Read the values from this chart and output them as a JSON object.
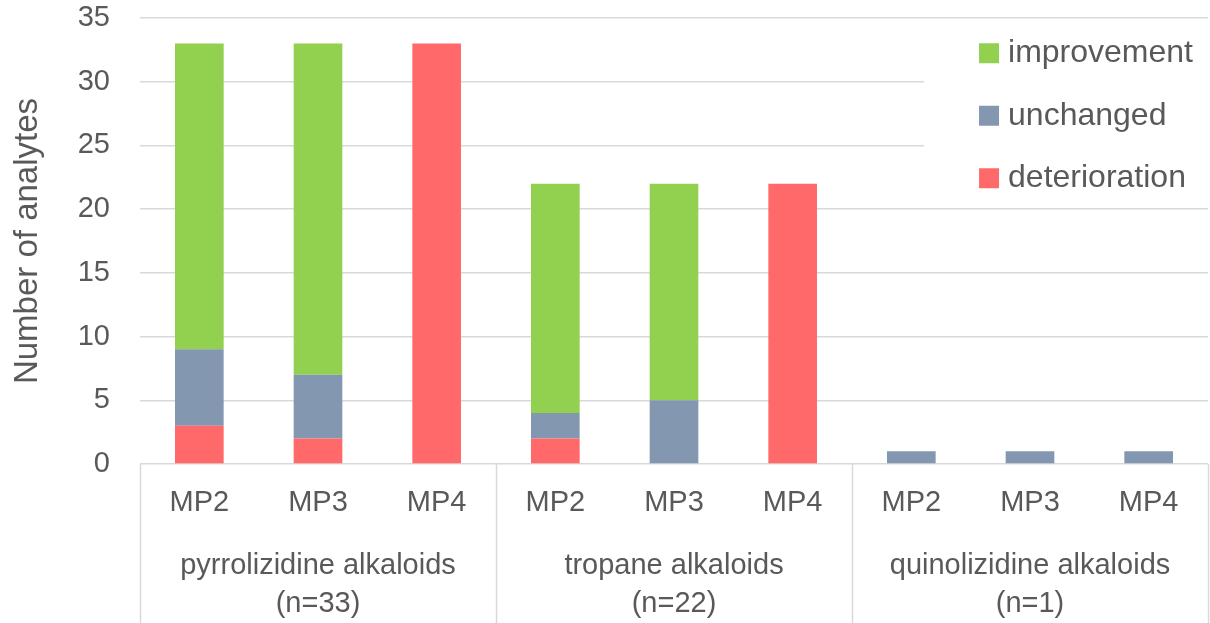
{
  "chart_data": {
    "type": "bar",
    "stacked": true,
    "ylabel": "Number of analytes",
    "categories": [
      "MP2",
      "MP3",
      "MP4",
      "MP2",
      "MP3",
      "MP4",
      "MP2",
      "MP3",
      "MP4"
    ],
    "series": [
      {
        "name": "deterioration",
        "color": "#ff6969",
        "values": [
          3,
          2,
          33,
          2,
          0,
          22,
          0,
          0,
          0
        ]
      },
      {
        "name": "unchanged",
        "color": "#8497b0",
        "values": [
          6,
          5,
          0,
          2,
          5,
          0,
          1,
          1,
          1
        ]
      },
      {
        "name": "improvement",
        "color": "#92d050",
        "values": [
          24,
          26,
          0,
          18,
          17,
          0,
          0,
          0,
          0
        ]
      }
    ],
    "ylim": [
      0,
      35
    ],
    "yticks": [
      0,
      5,
      10,
      15,
      20,
      25,
      30,
      35
    ],
    "grid": "y",
    "legend": "top right",
    "annotations": [
      "pyrrolizidine alkaloids\n(n=33)",
      "tropane alkaloids\n(n=22)",
      "quinolizidine alkaloids\n(n=1)"
    ]
  }
}
